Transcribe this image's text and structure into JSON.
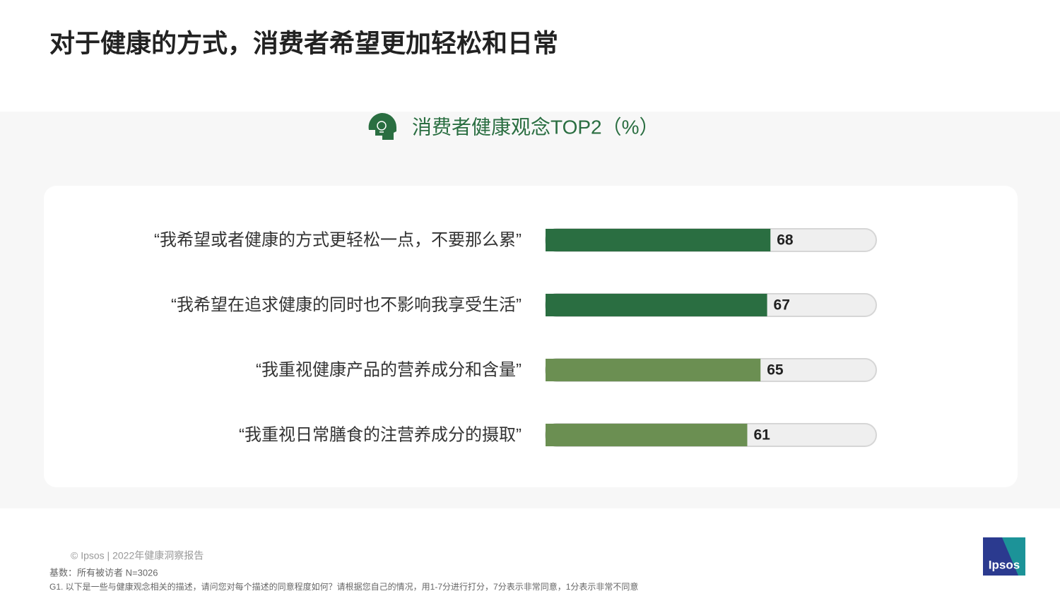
{
  "chart_data": {
    "type": "bar",
    "orientation": "horizontal",
    "title": "对于健康的方式，消费者希望更加轻松和日常",
    "subtitle": "消费者健康观念TOP2（%）",
    "categories": [
      "“我希望或者健康的方式更轻松一点，不要那么累”",
      "“我希望在追求健康的同时也不影响我享受生活”",
      "“我重视健康产品的营养成分和含量”",
      "“我重视日常膳食的注营养成分的摄取”"
    ],
    "values": [
      68,
      67,
      65,
      61
    ],
    "colors": [
      "#2a6e41",
      "#2a6e41",
      "#6b8f52",
      "#6b8f52"
    ],
    "xlim": [
      0,
      100
    ],
    "footer": {
      "source": "© Ipsos | 2022年健康洞察报告",
      "base": "基数：所有被访者  N=3026",
      "question": "G1. 以下是一些与健康观念相关的描述，请问您对每个描述的同意程度如何？请根据您自己的情况，用1-7分进行打分，7分表示非常同意，1分表示非常不同意"
    },
    "logo": "Ipsos"
  }
}
